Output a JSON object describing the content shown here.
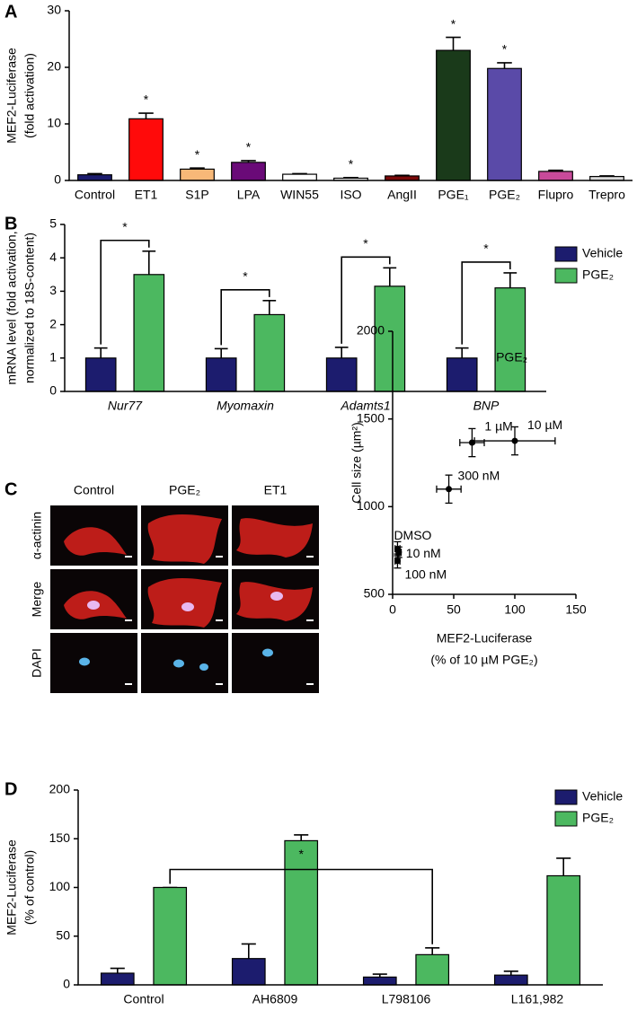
{
  "chart_data": [
    {
      "type": "bar",
      "panel": "A",
      "ylabel": [
        "MEF2-Luciferase",
        "(fold activation)"
      ],
      "categories": [
        "Control",
        "ET1",
        "S1P",
        "LPA",
        "WIN55",
        "ISO",
        "AngII",
        "PGE₁",
        "PGE₂",
        "Flupro",
        "Trepro"
      ],
      "values": [
        1.0,
        10.9,
        2.0,
        3.2,
        1.1,
        0.4,
        0.8,
        23.0,
        19.8,
        1.6,
        0.7
      ],
      "errors": [
        0.2,
        1.0,
        0.2,
        0.3,
        0.1,
        0.1,
        0.1,
        2.3,
        1.0,
        0.2,
        0.1
      ],
      "colors": [
        "#1c1c6e",
        "#ff0a0a",
        "#f7b878",
        "#6a0a78",
        "#ffffff",
        "#ffffff",
        "#7a0a0a",
        "#1a3a1a",
        "#5a4aa8",
        "#c84a9a",
        "#d8d8d8"
      ],
      "ylim": [
        0,
        30
      ],
      "yticks": [
        0,
        10,
        20,
        30
      ],
      "annotations": [
        {
          "text": "*",
          "category": "ET1"
        },
        {
          "text": "*",
          "category": "S1P"
        },
        {
          "text": "*",
          "category": "LPA"
        },
        {
          "text": "*",
          "category": "ISO"
        },
        {
          "text": "*",
          "category": "PGE₁"
        },
        {
          "text": "*",
          "category": "PGE₂"
        }
      ]
    },
    {
      "type": "bar",
      "panel": "B",
      "ylabel": [
        "mRNA level (fold activation,",
        "normalized to 18S-content)"
      ],
      "categories": [
        "Nur77",
        "Myomaxin",
        "Adamts1",
        "BNP"
      ],
      "category_style": "italic",
      "series": [
        {
          "name": "Vehicle",
          "color": "#1c1c6e",
          "values": [
            1,
            1,
            1,
            1
          ],
          "errors": [
            0.3,
            0.28,
            0.32,
            0.3
          ]
        },
        {
          "name": "PGE₂",
          "color": "#4cb860",
          "values": [
            3.5,
            2.3,
            3.15,
            3.1
          ],
          "errors": [
            0.7,
            0.42,
            0.55,
            0.45
          ]
        }
      ],
      "ylim": [
        0,
        5
      ],
      "yticks": [
        0,
        1,
        2,
        3,
        4,
        5
      ],
      "legend": "right",
      "annotations": [
        {
          "text": "*",
          "category": "Nur77"
        },
        {
          "text": "*",
          "category": "Myomaxin"
        },
        {
          "text": "*",
          "category": "Adamts1"
        },
        {
          "text": "*",
          "category": "BNP"
        }
      ]
    },
    {
      "type": "scatter",
      "title": "PGE₂",
      "xlabel": [
        "MEF2-Luciferase",
        "(% of 10 µM PGE₂)"
      ],
      "ylabel": [
        "Cell size (µm²)"
      ],
      "x": [
        4,
        5,
        4,
        46,
        65,
        100
      ],
      "xerr": [
        2,
        2,
        2,
        10,
        10,
        33
      ],
      "y": [
        760,
        740,
        690,
        1100,
        1365,
        1375
      ],
      "yerr": [
        40,
        30,
        40,
        80,
        80,
        80
      ],
      "point_labels": [
        "DMSO",
        "10 nM",
        "100 nM",
        "300 nM",
        "1 µM",
        "10 µM"
      ],
      "xlim": [
        0,
        150
      ],
      "xticks": [
        0,
        50,
        100,
        150
      ],
      "ylim": [
        500,
        2000
      ],
      "yticks": [
        500,
        1000,
        1500,
        2000
      ]
    },
    {
      "type": "bar",
      "panel": "D",
      "ylabel": [
        "MEF2-Luciferase",
        "(% of control)"
      ],
      "categories": [
        "Control",
        "AH6809",
        "L798106",
        "L161,982"
      ],
      "series": [
        {
          "name": "Vehicle",
          "color": "#1c1c6e",
          "values": [
            12,
            27,
            8,
            10
          ],
          "errors": [
            5,
            15,
            3,
            4
          ]
        },
        {
          "name": "PGE₂",
          "color": "#4cb860",
          "values": [
            100,
            148,
            31,
            112
          ],
          "errors": [
            0,
            6,
            7,
            18
          ]
        }
      ],
      "ylim": [
        0,
        200
      ],
      "yticks": [
        0,
        50,
        100,
        150,
        200
      ],
      "legend": "right",
      "annotations": [
        {
          "text": "*",
          "from": "Control",
          "to": "L798106"
        }
      ]
    }
  ],
  "micrographs": {
    "panel": "C",
    "columns": [
      "Control",
      "PGE₂",
      "ET1"
    ],
    "rows": [
      "α-actinin",
      "Merge",
      "DAPI"
    ]
  }
}
